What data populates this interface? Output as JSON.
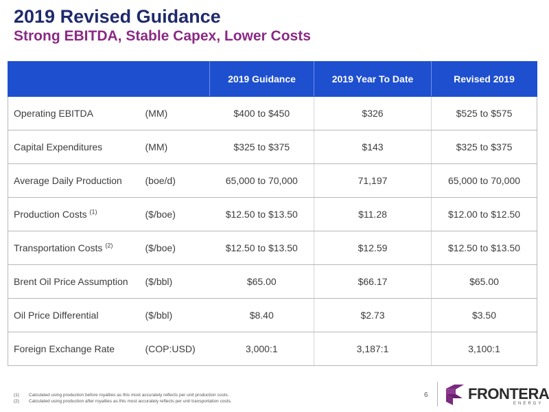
{
  "header": {
    "title": "2019 Revised Guidance",
    "subtitle": "Strong EBITDA, Stable Capex, Lower Costs"
  },
  "table": {
    "columns": [
      "",
      "",
      "2019 Guidance",
      "2019 Year To Date",
      "Revised 2019"
    ],
    "rows": [
      {
        "metric": "Operating EBITDA",
        "note": "",
        "unit": "(MM)",
        "guidance": "$400 to $450",
        "ytd": "$326",
        "revised": "$525 to $575"
      },
      {
        "metric": "Capital Expenditures",
        "note": "",
        "unit": "(MM)",
        "guidance": "$325 to $375",
        "ytd": "$143",
        "revised": "$325 to $375"
      },
      {
        "metric": "Average Daily Production",
        "note": "",
        "unit": "(boe/d)",
        "guidance": "65,000 to 70,000",
        "ytd": "71,197",
        "revised": "65,000 to 70,000"
      },
      {
        "metric": "Production Costs",
        "note": "(1)",
        "unit": "($/boe)",
        "guidance": "$12.50 to $13.50",
        "ytd": "$11.28",
        "revised": "$12.00 to $12.50"
      },
      {
        "metric": "Transportation Costs",
        "note": "(2)",
        "unit": "($/boe)",
        "guidance": "$12.50 to $13.50",
        "ytd": "$12.59",
        "revised": "$12.50 to $13.50"
      },
      {
        "metric": "Brent Oil Price Assumption",
        "note": "",
        "unit": "($/bbl)",
        "guidance": "$65.00",
        "ytd": "$66.17",
        "revised": "$65.00"
      },
      {
        "metric": "Oil Price Differential",
        "note": "",
        "unit": "($/bbl)",
        "guidance": "$8.40",
        "ytd": "$2.73",
        "revised": "$3.50"
      },
      {
        "metric": "Foreign Exchange Rate",
        "note": "",
        "unit": "(COP:USD)",
        "guidance": "3,000:1",
        "ytd": "3,187:1",
        "revised": "3,100:1"
      }
    ]
  },
  "footnotes": [
    {
      "num": "(1)",
      "text": "Calculated using production before royalties as this most accurately reflects per unit production costs."
    },
    {
      "num": "(2)",
      "text": "Calculated using production after royalties as this most accurately reflects per unit transportation costs."
    }
  ],
  "page_number": "6",
  "logo": {
    "name": "FRONTERA",
    "subtext": "ENERGY",
    "colors": {
      "purple": "#7a2a7f",
      "dark": "#2b2b2b"
    }
  },
  "colors": {
    "title": "#1f2a6b",
    "subtitle": "#8a2a84",
    "table_header": "#1e4fcf"
  }
}
